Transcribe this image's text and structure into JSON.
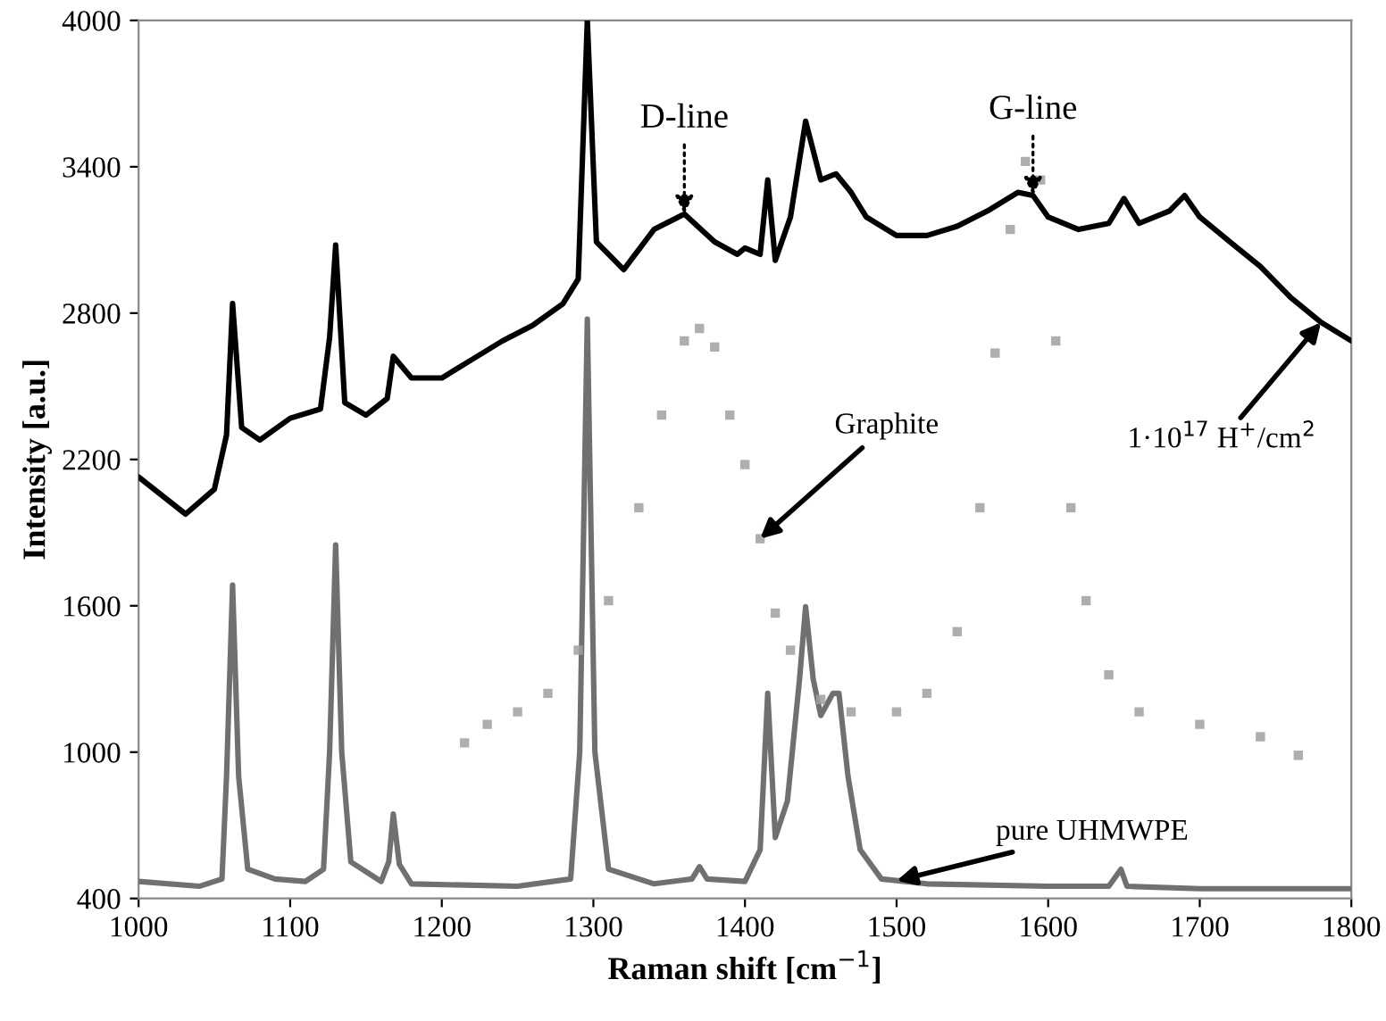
{
  "chart_data": {
    "type": "line",
    "xlabel": "Raman shift [cm$^{−1}$]",
    "ylabel": "Intensity [a.u.]",
    "xlim": [
      1000,
      1800
    ],
    "xticks": [
      1000,
      1100,
      1200,
      1300,
      1400,
      1500,
      1600,
      1700,
      1800
    ],
    "ylim": [
      400,
      4000
    ],
    "yticks": [
      400,
      1000,
      1600,
      2200,
      2800,
      3400,
      4000
    ],
    "grid": false,
    "legend": false,
    "series": [
      {
        "color": "#000000",
        "marker": "none",
        "x": [
          1000,
          1031,
          1050,
          1058,
          1062,
          1068,
          1080,
          1100,
          1120,
          1126,
          1130,
          1136,
          1150,
          1164,
          1168,
          1180,
          1200,
          1220,
          1240,
          1260,
          1280,
          1290,
          1296,
          1302,
          1310,
          1320,
          1340,
          1360,
          1380,
          1395,
          1400,
          1410,
          1415,
          1420,
          1430,
          1440,
          1450,
          1460,
          1470,
          1480,
          1500,
          1520,
          1540,
          1560,
          1580,
          1590,
          1600,
          1620,
          1640,
          1650,
          1660,
          1680,
          1690,
          1700,
          1720,
          1740,
          1760,
          1780,
          1800
        ],
        "values": [
          2128,
          1976,
          2078,
          2300,
          2839,
          2331,
          2280,
          2369,
          2407,
          2700,
          3079,
          2433,
          2382,
          2450,
          2623,
          2534,
          2534,
          2610,
          2686,
          2750,
          2839,
          2940,
          4000,
          3092,
          3041,
          2978,
          3143,
          3206,
          3092,
          3041,
          3067,
          3041,
          3346,
          3016,
          3194,
          3587,
          3346,
          3371,
          3295,
          3194,
          3118,
          3118,
          3156,
          3219,
          3295,
          3282,
          3194,
          3143,
          3168,
          3270,
          3168,
          3219,
          3282,
          3194,
          3092,
          2991,
          2864,
          2762,
          2686
        ]
      },
      {
        "type": "scatter",
        "color": "#a0a0a0",
        "marker": "square",
        "x": [
          1215,
          1230,
          1250,
          1270,
          1290,
          1310,
          1330,
          1345,
          1360,
          1370,
          1380,
          1390,
          1400,
          1410,
          1420,
          1430,
          1450,
          1470,
          1500,
          1520,
          1540,
          1555,
          1565,
          1575,
          1585,
          1595,
          1605,
          1615,
          1625,
          1640,
          1660,
          1700,
          1740,
          1765
        ],
        "values": [
          1038,
          1114,
          1165,
          1241,
          1418,
          1621,
          2002,
          2382,
          2686,
          2737,
          2661,
          2382,
          2179,
          1875,
          1570,
          1418,
          1216,
          1165,
          1165,
          1241,
          1494,
          2002,
          2636,
          3143,
          3422,
          3346,
          2686,
          2002,
          1621,
          1317,
          1165,
          1114,
          1063,
          987
        ]
      },
      {
        "color": "#707070",
        "marker": "none",
        "x": [
          1000,
          1040,
          1055,
          1058,
          1062,
          1066,
          1072,
          1090,
          1110,
          1122,
          1126,
          1130,
          1134,
          1140,
          1160,
          1165,
          1168,
          1172,
          1180,
          1250,
          1285,
          1291,
          1296,
          1301,
          1310,
          1340,
          1365,
          1370,
          1375,
          1400,
          1410,
          1415,
          1420,
          1428,
          1436,
          1440,
          1445,
          1450,
          1458,
          1462,
          1468,
          1476,
          1490,
          1520,
          1600,
          1640,
          1648,
          1652,
          1700,
          1800
        ],
        "values": [
          470,
          450,
          480,
          900,
          1685,
          900,
          520,
          480,
          470,
          520,
          1000,
          1850,
          1000,
          550,
          470,
          550,
          746,
          540,
          460,
          450,
          480,
          1000,
          2775,
          1000,
          520,
          460,
          480,
          530,
          480,
          470,
          600,
          1241,
          650,
          800,
          1300,
          1596,
          1300,
          1150,
          1241,
          1241,
          900,
          600,
          480,
          460,
          450,
          450,
          520,
          450,
          440,
          440
        ]
      }
    ],
    "annotations": [
      {
        "text": "D-line",
        "x": 1360,
        "y": 3206
      },
      {
        "text": "G-line",
        "x": 1590,
        "y": 3282
      },
      {
        "text": "Graphite",
        "x": 1410,
        "y": 1875
      },
      {
        "text": "1·10$^{17}$ H$^{+}$/cm$^{2}$",
        "x": 1780,
        "y": 2762
      },
      {
        "text": "pure UHMWPE",
        "x": 1500,
        "y": 473
      }
    ]
  }
}
